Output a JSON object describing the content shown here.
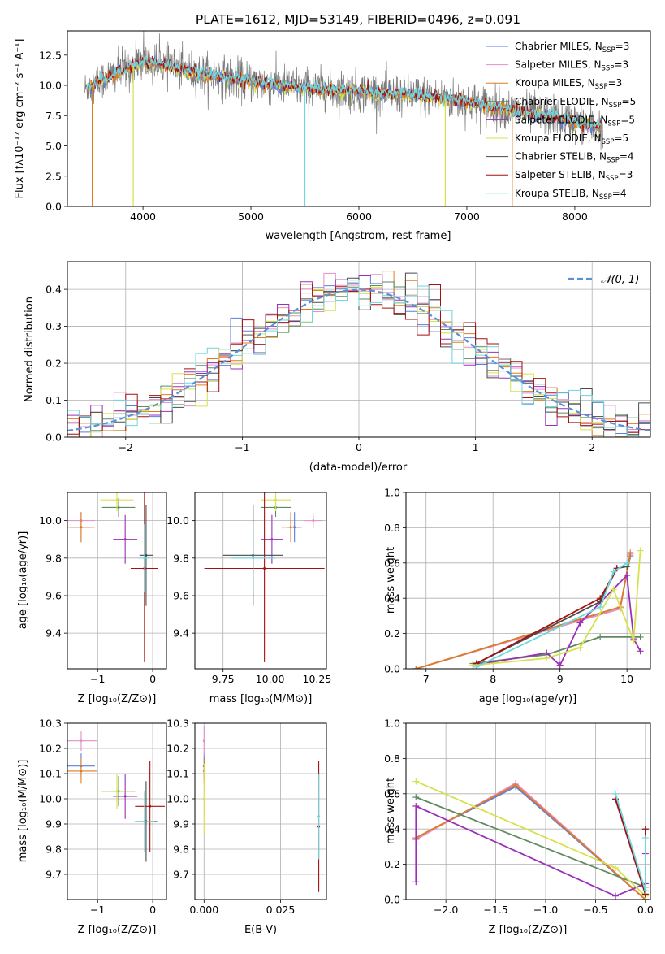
{
  "figure": {
    "title": "PLATE=1612, MJD=53149, FIBERID=0496, z=0.091"
  },
  "colors": {
    "Chabrier MILES": "#5b7ee0",
    "Salpeter MILES": "#e38fc8",
    "Kroupa MILES": "#e07c1f",
    "Chabrier ELODIE": "#5f8a60",
    "Salpeter ELODIE": "#9a30b8",
    "Kroupa ELODIE": "#d6e24a",
    "Chabrier STELIB": "#4a4a4a",
    "Salpeter STELIB": "#a51010",
    "Kroupa STELIB": "#6fd6dc",
    "observed": "#7a7a7a",
    "gaussian": "#5b8fd8",
    "grid": "#b0b0b0"
  },
  "chart_data": [
    {
      "id": "spectrum",
      "type": "line",
      "title": "PLATE=1612, MJD=53149, FIBERID=0496, z=0.091",
      "xlabel": "wavelength [Angstrom, rest frame]",
      "ylabel": "Flux [fλ10⁻¹⁷ erg cm⁻² s⁻¹ A⁻¹]",
      "xlim": [
        3300,
        8700
      ],
      "ylim": [
        0,
        14.5
      ],
      "xticks": [
        4000,
        5000,
        6000,
        7000,
        8000
      ],
      "yticks": [
        0.0,
        2.5,
        5.0,
        7.5,
        10.0,
        12.5
      ],
      "grid": false,
      "legend": "top-right",
      "legend_entries": [
        {
          "label": "Chabrier MILES, N",
          "sub": "SSP",
          "suffix": "=3"
        },
        {
          "label": "Salpeter MILES, N",
          "sub": "SSP",
          "suffix": "=3"
        },
        {
          "label": "Kroupa MILES, N",
          "sub": "SSP",
          "suffix": "=3"
        },
        {
          "label": "Chabrier ELODIE, N",
          "sub": "SSP",
          "suffix": "=5"
        },
        {
          "label": "Salpeter ELODIE, N",
          "sub": "SSP",
          "suffix": "=5"
        },
        {
          "label": "Kroupa ELODIE, N",
          "sub": "SSP",
          "suffix": "=5"
        },
        {
          "label": "Chabrier STELIB, N",
          "sub": "SSP",
          "suffix": "=4"
        },
        {
          "label": "Salpeter STELIB, N",
          "sub": "SSP",
          "suffix": "=3"
        },
        {
          "label": "Kroupa STELIB, N",
          "sub": "SSP",
          "suffix": "=4"
        }
      ],
      "continuum_model": {
        "x": [
          3450,
          3600,
          3800,
          4000,
          4200,
          4500,
          4800,
          5000,
          5300,
          5600,
          6000,
          6300,
          6600,
          6900,
          7200,
          7500,
          7800,
          8200
        ],
        "y": [
          9.6,
          10.3,
          11.2,
          11.9,
          11.7,
          11.0,
          10.6,
          10.3,
          10.0,
          9.7,
          9.5,
          9.3,
          9.1,
          8.8,
          8.3,
          7.8,
          7.4,
          6.6
        ]
      }
    },
    {
      "id": "residuals",
      "type": "line",
      "xlabel": "(data-model)/error",
      "ylabel": "Normed distribution",
      "xlim": [
        -2.5,
        2.5
      ],
      "ylim": [
        0,
        0.475
      ],
      "xticks": [
        -2,
        -1,
        0,
        1,
        2
      ],
      "yticks": [
        0.0,
        0.1,
        0.2,
        0.3,
        0.4
      ],
      "grid": true,
      "legend": "top-right",
      "legend_entries": [
        {
          "label": "𝒩(0, 1)"
        }
      ],
      "bin_width": 0.1
    },
    {
      "id": "age_vs_Z",
      "type": "scatter",
      "xlabel": "Z [log₁₀(Z/Z⊙)]",
      "ylabel": "age  [log₁₀(age/yr)]",
      "xlim": [
        -1.55,
        0.25
      ],
      "ylim": [
        9.21,
        10.15
      ],
      "xticks": [
        -1,
        0
      ],
      "yticks": [
        9.4,
        9.6,
        9.8,
        10.0
      ],
      "grid": true,
      "points": [
        {
          "series": "Chabrier MILES",
          "x": -1.3,
          "xerr": 0.2,
          "y": 9.965,
          "yerr": 0.08
        },
        {
          "series": "Salpeter MILES",
          "x": -1.3,
          "xerr": 0.25,
          "y": 10.0,
          "yerr": 0.04
        },
        {
          "series": "Kroupa MILES",
          "x": -1.3,
          "xerr": 0.25,
          "y": 9.965,
          "yerr": 0.08
        },
        {
          "series": "Chabrier ELODIE",
          "x": -0.62,
          "xerr": 0.3,
          "y": 10.07,
          "yerr": 0.05
        },
        {
          "series": "Salpeter ELODIE",
          "x": -0.5,
          "xerr": 0.22,
          "y": 9.9,
          "yerr": 0.13
        },
        {
          "series": "Kroupa ELODIE",
          "x": -0.65,
          "xerr": 0.3,
          "y": 10.11,
          "yerr": 0.06
        },
        {
          "series": "Chabrier STELIB",
          "x": -0.12,
          "xerr": 0.12,
          "y": 9.815,
          "yerr": 0.27
        },
        {
          "series": "Salpeter STELIB",
          "x": -0.15,
          "xerr": 0.25,
          "y": 9.745,
          "yerr": 0.5
        },
        {
          "series": "Kroupa STELIB",
          "x": -0.15,
          "xerr": 0.1,
          "y": 9.8,
          "yerr": 0.18
        }
      ]
    },
    {
      "id": "age_vs_mass",
      "type": "scatter",
      "xlabel": "mass [log₁₀(M/M⊙)]",
      "ylabel": "",
      "xlim": [
        9.6,
        10.3
      ],
      "ylim": [
        9.21,
        10.15
      ],
      "xticks": [
        9.75,
        10.0,
        10.25
      ],
      "yticks": [
        9.4,
        9.6,
        9.8,
        10.0
      ],
      "grid": true,
      "points": [
        {
          "series": "Chabrier MILES",
          "x": 10.13,
          "xerr": 0.04,
          "y": 9.965,
          "yerr": 0.08
        },
        {
          "series": "Salpeter MILES",
          "x": 10.23,
          "xerr": 0.05,
          "y": 10.0,
          "yerr": 0.04
        },
        {
          "series": "Kroupa MILES",
          "x": 10.11,
          "xerr": 0.05,
          "y": 9.965,
          "yerr": 0.08
        },
        {
          "series": "Chabrier ELODIE",
          "x": 10.03,
          "xerr": 0.08,
          "y": 10.07,
          "yerr": 0.05
        },
        {
          "series": "Salpeter ELODIE",
          "x": 10.01,
          "xerr": 0.06,
          "y": 9.9,
          "yerr": 0.13
        },
        {
          "series": "Kroupa ELODIE",
          "x": 10.03,
          "xerr": 0.08,
          "y": 10.11,
          "yerr": 0.06
        },
        {
          "series": "Chabrier STELIB",
          "x": 9.91,
          "xerr": 0.16,
          "y": 9.815,
          "yerr": 0.27
        },
        {
          "series": "Salpeter STELIB",
          "x": 9.97,
          "xerr": 0.32,
          "y": 9.745,
          "yerr": 0.5
        },
        {
          "series": "Kroupa STELIB",
          "x": 9.91,
          "xerr": 0.12,
          "y": 9.8,
          "yerr": 0.18
        }
      ]
    },
    {
      "id": "weight_vs_age",
      "type": "line",
      "xlabel": "age  [log₁₀(age/yr)]",
      "ylabel": "mass weight",
      "xlim": [
        6.7,
        10.35
      ],
      "ylim": [
        0,
        1
      ],
      "xticks": [
        7,
        8,
        9,
        10
      ],
      "yticks": [
        0.0,
        0.2,
        0.4,
        0.6,
        0.8,
        1.0
      ],
      "grid": true,
      "series": [
        {
          "name": "Chabrier MILES",
          "x": [
            6.85,
            9.9,
            10.05
          ],
          "y": [
            0.0,
            0.35,
            0.64
          ]
        },
        {
          "name": "Salpeter MILES",
          "x": [
            6.85,
            9.9,
            10.05
          ],
          "y": [
            0.0,
            0.34,
            0.66
          ]
        },
        {
          "name": "Kroupa MILES",
          "x": [
            6.85,
            9.9,
            10.05
          ],
          "y": [
            0.0,
            0.35,
            0.65
          ]
        },
        {
          "name": "Chabrier ELODIE",
          "x": [
            7.7,
            8.8,
            9.6,
            10.2
          ],
          "y": [
            0.03,
            0.08,
            0.18,
            0.18
          ]
        },
        {
          "name": "Salpeter ELODIE",
          "x": [
            7.7,
            8.8,
            9.0,
            9.3,
            10.0,
            10.1,
            10.2
          ],
          "y": [
            0.02,
            0.09,
            0.02,
            0.26,
            0.53,
            0.17,
            0.1
          ]
        },
        {
          "name": "Kroupa ELODIE",
          "x": [
            7.7,
            8.8,
            9.3,
            9.8,
            10.1,
            10.2
          ],
          "y": [
            0.02,
            0.06,
            0.12,
            0.45,
            0.16,
            0.67
          ]
        },
        {
          "name": "Chabrier STELIB",
          "x": [
            7.75,
            9.6,
            9.85,
            10.0
          ],
          "y": [
            0.03,
            0.38,
            0.57,
            0.58
          ]
        },
        {
          "name": "Salpeter STELIB",
          "x": [
            7.75,
            9.6,
            9.85
          ],
          "y": [
            0.03,
            0.4,
            0.57
          ]
        },
        {
          "name": "Kroupa STELIB",
          "x": [
            7.75,
            9.6,
            9.8,
            10.0
          ],
          "y": [
            0.01,
            0.35,
            0.55,
            0.6
          ]
        }
      ]
    },
    {
      "id": "mass_vs_Z",
      "type": "scatter",
      "xlabel": "Z [log₁₀(Z/Z⊙)]",
      "ylabel": "mass [log₁₀(M/M⊙)]",
      "xlim": [
        -1.55,
        0.25
      ],
      "ylim": [
        9.6,
        10.3
      ],
      "xticks": [
        -1,
        0
      ],
      "yticks": [
        9.7,
        9.8,
        9.9,
        10.0,
        10.1,
        10.2,
        10.3
      ],
      "grid": true,
      "points": [
        {
          "series": "Chabrier MILES",
          "x": -1.3,
          "xerr": 0.25,
          "y": 10.13,
          "yerr": 0.05
        },
        {
          "series": "Salpeter MILES",
          "x": -1.3,
          "xerr": 0.28,
          "y": 10.23,
          "yerr": 0.04
        },
        {
          "series": "Kroupa MILES",
          "x": -1.3,
          "xerr": 0.28,
          "y": 10.11,
          "yerr": 0.05
        },
        {
          "series": "Chabrier ELODIE",
          "x": -0.62,
          "xerr": 0.3,
          "y": 10.03,
          "yerr": 0.06
        },
        {
          "series": "Salpeter ELODIE",
          "x": -0.5,
          "xerr": 0.22,
          "y": 10.01,
          "yerr": 0.09
        },
        {
          "series": "Kroupa ELODIE",
          "x": -0.65,
          "xerr": 0.3,
          "y": 10.03,
          "yerr": 0.07
        },
        {
          "series": "Chabrier STELIB",
          "x": -0.12,
          "xerr": 0.2,
          "y": 9.91,
          "yerr": 0.16
        },
        {
          "series": "Salpeter STELIB",
          "x": -0.05,
          "xerr": 0.27,
          "y": 9.97,
          "yerr": 0.18
        },
        {
          "series": "Kroupa STELIB",
          "x": -0.15,
          "xerr": 0.18,
          "y": 9.91,
          "yerr": 0.12
        }
      ]
    },
    {
      "id": "mass_vs_ebv",
      "type": "scatter",
      "xlabel": "E(B-V)",
      "ylabel": "",
      "xlim": [
        -0.003,
        0.04
      ],
      "ylim": [
        9.6,
        10.3
      ],
      "xticks": [
        0.0,
        0.025
      ],
      "xticklabels": [
        "0.000",
        "0.025"
      ],
      "yticks": [
        9.7,
        9.8,
        9.9,
        10.0,
        10.1,
        10.2,
        10.3
      ],
      "grid": true,
      "points": [
        {
          "series": "Chabrier MILES",
          "x": 0.0,
          "y": 10.13,
          "yerr": 0.05
        },
        {
          "series": "Salpeter MILES",
          "x": 0.0,
          "y": 10.23,
          "yerr": 0.06
        },
        {
          "series": "Kroupa MILES",
          "x": 0.0,
          "y": 10.11,
          "yerr": 0.05
        },
        {
          "series": "Kroupa ELODIE",
          "x": 0.0,
          "y": 10.0,
          "yerr": 0.14
        },
        {
          "series": "Salpeter STELIB",
          "x": 0.0375,
          "y": 9.89,
          "yerr": 0.26
        },
        {
          "series": "Kroupa STELIB",
          "x": 0.0375,
          "y": 9.93,
          "yerr": 0.17
        }
      ]
    },
    {
      "id": "weight_vs_Z",
      "type": "line",
      "xlabel": "Z [log₁₀(Z/Z⊙)]",
      "ylabel": "mass weight",
      "xlim": [
        -2.4,
        0.05
      ],
      "ylim": [
        0,
        1
      ],
      "xticks": [
        -2.0,
        -1.5,
        -1.0,
        -0.5,
        0.0
      ],
      "yticks": [
        0.0,
        0.2,
        0.4,
        0.6,
        0.8,
        1.0
      ],
      "grid": true,
      "series": [
        {
          "name": "Chabrier MILES",
          "x": [
            -2.3,
            -1.3,
            0.0
          ],
          "y": [
            0.35,
            0.64,
            0.0
          ]
        },
        {
          "name": "Salpeter MILES",
          "x": [
            -2.3,
            -1.3,
            0.0
          ],
          "y": [
            0.34,
            0.66,
            0.0
          ]
        },
        {
          "name": "Kroupa MILES",
          "x": [
            -2.3,
            -1.3,
            0.0
          ],
          "y": [
            0.35,
            0.65,
            0.0
          ]
        },
        {
          "name": "Chabrier ELODIE",
          "x": [
            -2.3,
            0.0,
            0.0
          ],
          "y": [
            0.58,
            0.07,
            0.03
          ]
        },
        {
          "name": "Salpeter ELODIE",
          "x": [
            -2.3,
            -2.3,
            -0.3,
            0.0,
            0.0
          ],
          "y": [
            0.1,
            0.53,
            0.02,
            0.09,
            0.26
          ]
        },
        {
          "name": "Kroupa ELODIE",
          "x": [
            -2.3,
            -0.3,
            0.0
          ],
          "y": [
            0.67,
            0.18,
            0.02
          ]
        },
        {
          "name": "Chabrier STELIB",
          "x": [
            -0.3,
            0.0,
            0.0
          ],
          "y": [
            0.57,
            0.03,
            0.4
          ]
        },
        {
          "name": "Salpeter STELIB",
          "x": [
            -0.3,
            0.0,
            0.0
          ],
          "y": [
            0.57,
            0.03,
            0.4
          ]
        },
        {
          "name": "Kroupa STELIB",
          "x": [
            -0.3,
            0.0,
            0.0
          ],
          "y": [
            0.6,
            0.05,
            0.35
          ]
        }
      ]
    }
  ]
}
